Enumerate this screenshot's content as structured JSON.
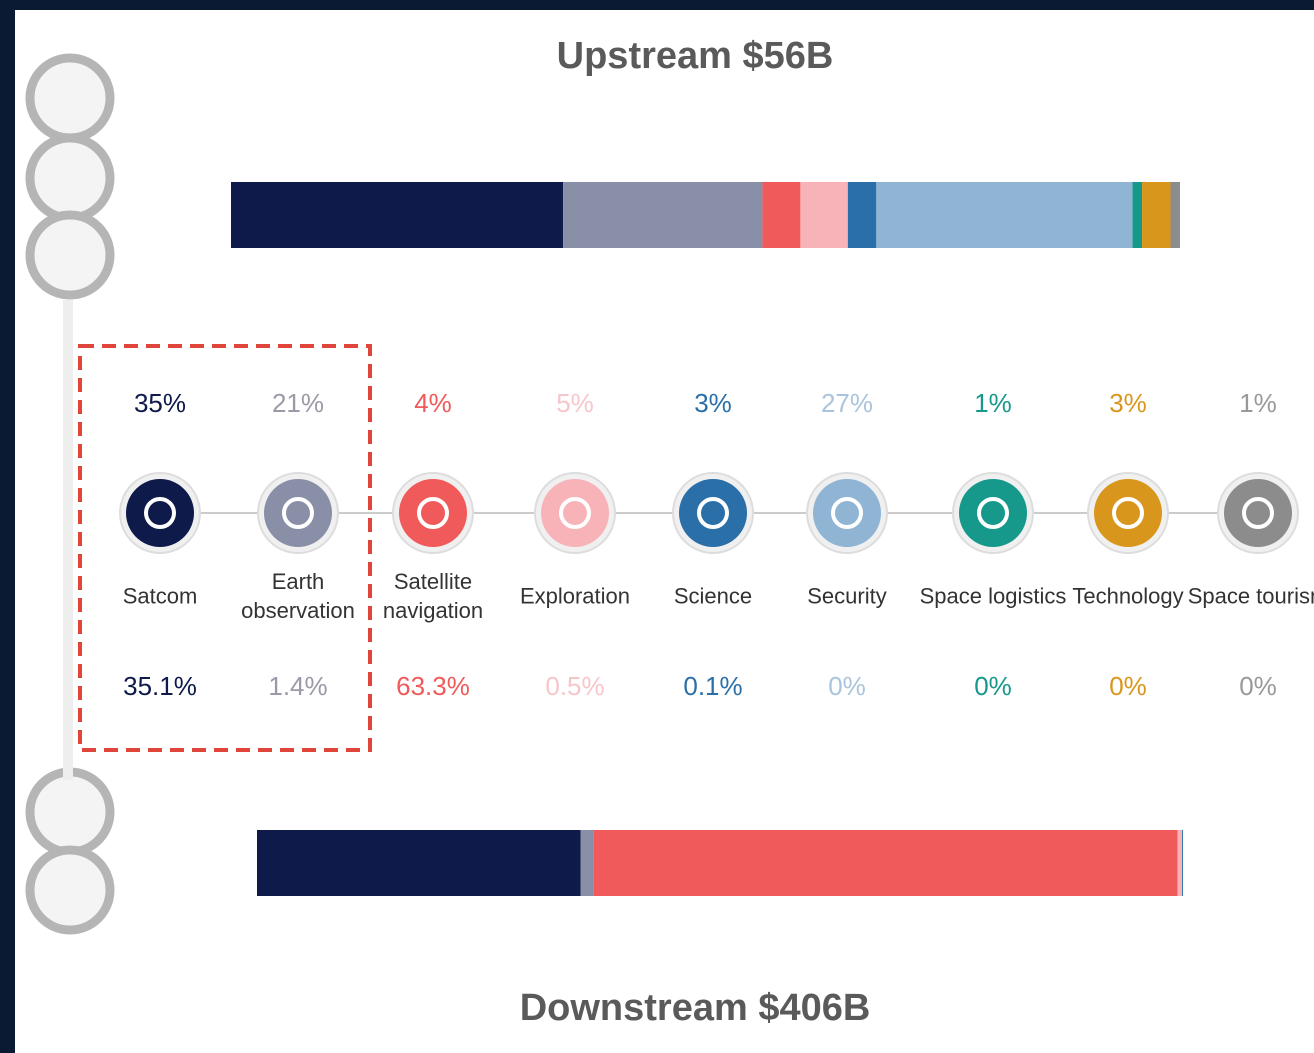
{
  "chart_data": {
    "type": "stacked-bar",
    "categories": [
      "Satcom",
      "Earth observation",
      "Satellite navigation",
      "Exploration",
      "Science",
      "Security",
      "Space logistics",
      "Technology",
      "Space tourism"
    ],
    "colors": [
      "#0d1a4a",
      "#8a8fa8",
      "#f05a5a",
      "#f7b3b8",
      "#2a6fa8",
      "#8fb4d4",
      "#16998a",
      "#d9961c",
      "#8c8c8c"
    ],
    "series": [
      {
        "name": "Upstream $56B",
        "values": [
          35,
          21,
          4,
          5,
          3,
          27,
          1,
          3,
          1
        ],
        "value_labels": [
          "35%",
          "21%",
          "4%",
          "5%",
          "3%",
          "27%",
          "1%",
          "3%",
          "1%"
        ]
      },
      {
        "name": "Downstream $406B",
        "values": [
          35.1,
          1.4,
          63.3,
          0.5,
          0.1,
          0,
          0,
          0,
          0
        ],
        "value_labels": [
          "35.1%",
          "1.4%",
          "63.3%",
          "0.5%",
          "0.1%",
          "0%",
          "0%",
          "0%",
          "0%"
        ]
      }
    ]
  }
}
